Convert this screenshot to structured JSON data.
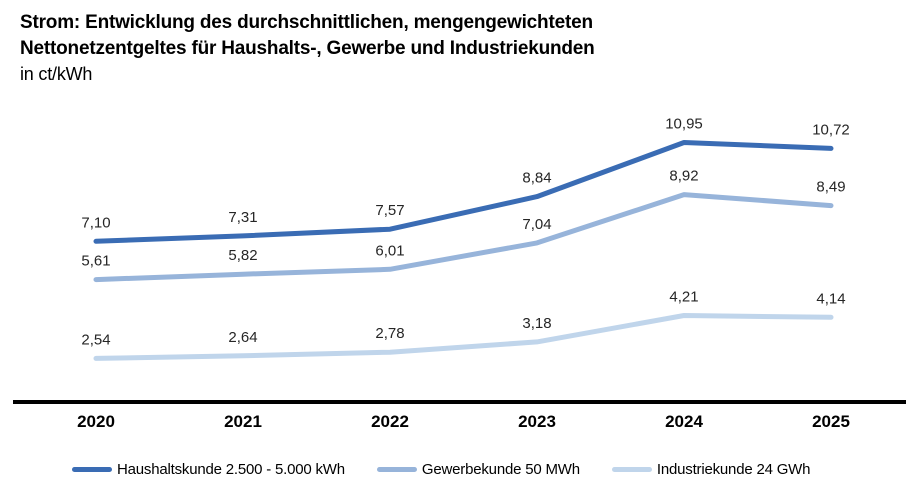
{
  "header": {
    "title_line1": "Strom: Entwicklung des durchschnittlichen, mengengewichteten",
    "title_line2": "Nettonetzentgeltes für Haushalts-, Gewerbe und Industriekunden",
    "subtitle": "in ct/kWh"
  },
  "chart_data": {
    "type": "line",
    "title": "Strom: Entwicklung des durchschnittlichen, mengengewichteten Nettonetzentgeltes für Haushalts-, Gewerbe und Industriekunden",
    "unit": "ct/kWh",
    "categories": [
      "2020",
      "2021",
      "2022",
      "2023",
      "2024",
      "2025"
    ],
    "series": [
      {
        "name": "Haushaltskunde 2.500 - 5.000 kWh",
        "color": "#3A6CB4",
        "values": [
          7.1,
          7.31,
          7.57,
          8.84,
          10.95,
          10.72
        ],
        "labels": [
          "7,10",
          "7,31",
          "7,57",
          "8,84",
          "10,95",
          "10,72"
        ]
      },
      {
        "name": "Gewerbekunde 50 MWh",
        "color": "#97B4DA",
        "values": [
          5.61,
          5.82,
          6.01,
          7.04,
          8.92,
          8.49
        ],
        "labels": [
          "5,61",
          "5,82",
          "6,01",
          "7,04",
          "8,92",
          "8,49"
        ]
      },
      {
        "name": "Industriekunde 24 GWh",
        "color": "#C0D5EB",
        "values": [
          2.54,
          2.64,
          2.78,
          3.18,
          4.21,
          4.14
        ],
        "labels": [
          "2,54",
          "2,64",
          "2,78",
          "3,18",
          "4,21",
          "4,14"
        ]
      }
    ],
    "ylim": [
      0.84,
      12.8
    ],
    "grid": false,
    "y_axis_visible": false,
    "legend_position": "bottom",
    "data_labels": true,
    "decimal_separator": ",",
    "axis_line_color": "#000000"
  }
}
